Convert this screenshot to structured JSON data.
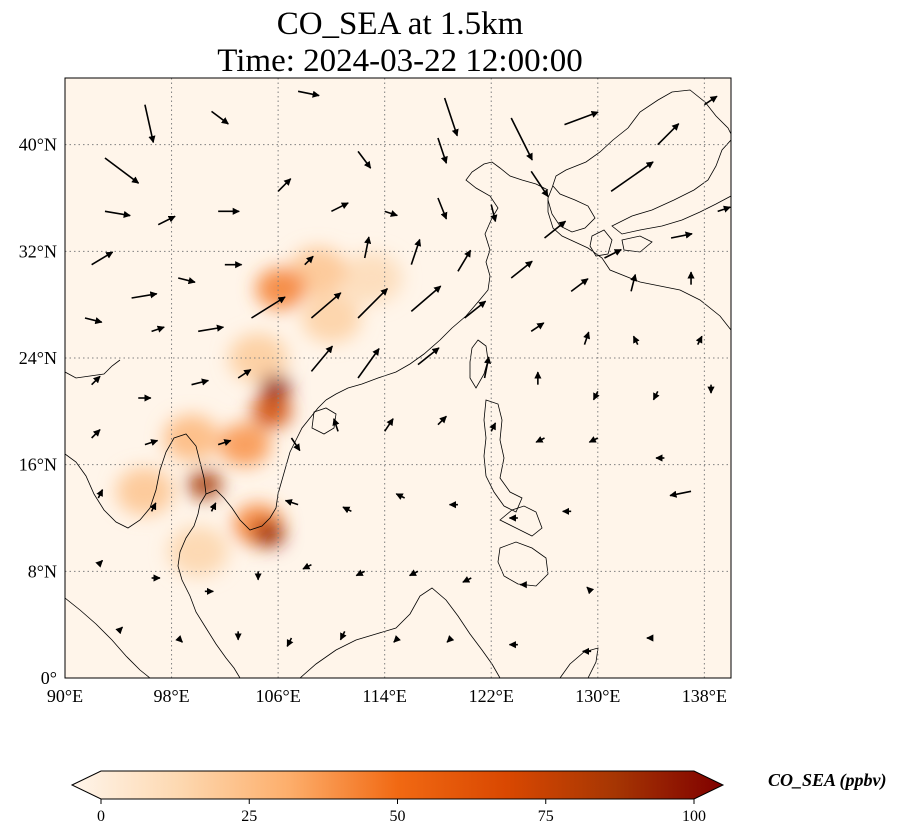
{
  "title": {
    "line1": "CO_SEA at 1.5km",
    "line2": "Time: 2024-03-22 12:00:00"
  },
  "map": {
    "lon_range": [
      90,
      140
    ],
    "lat_range": [
      0,
      45
    ],
    "lon_ticks": [
      90,
      98,
      106,
      114,
      122,
      130,
      138
    ],
    "lon_tick_labels": [
      "90°E",
      "98°E",
      "106°E",
      "114°E",
      "122°E",
      "130°E",
      "138°E"
    ],
    "lat_ticks": [
      0,
      8,
      16,
      24,
      32,
      40
    ],
    "lat_tick_labels": [
      "0°",
      "8°N",
      "16°N",
      "24°N",
      "32°N",
      "40°N"
    ],
    "gridlines": "dotted",
    "background_color": "#fff5ea",
    "coastline_color": "#000000"
  },
  "colorbar": {
    "label": "CO_SEA (ppbv)",
    "range": [
      0,
      100
    ],
    "ticks": [
      0,
      25,
      50,
      75,
      100
    ],
    "tick_labels": [
      "0",
      "25",
      "50",
      "75",
      "100"
    ],
    "extend": "both",
    "colormap": [
      "#fff5eb",
      "#fdd8b0",
      "#fdae6b",
      "#f16913",
      "#d94801",
      "#a63603",
      "#7f0000"
    ]
  },
  "chart_data": {
    "type": "heatmap",
    "variable": "CO_SEA (ppbv)",
    "hotspots": [
      {
        "lon": 105.8,
        "lat": 21.8,
        "value": 95
      },
      {
        "lon": 105.3,
        "lat": 10.8,
        "value": 92
      },
      {
        "lon": 100.5,
        "lat": 14.5,
        "value": 85
      },
      {
        "lon": 105.5,
        "lat": 20.0,
        "value": 70
      },
      {
        "lon": 106.2,
        "lat": 29.2,
        "value": 45
      },
      {
        "lon": 104.5,
        "lat": 11.5,
        "value": 45
      },
      {
        "lon": 103.5,
        "lat": 17.5,
        "value": 40
      },
      {
        "lon": 99.5,
        "lat": 18.0,
        "value": 30
      },
      {
        "lon": 109.0,
        "lat": 30.5,
        "value": 25
      },
      {
        "lon": 96.0,
        "lat": 14.0,
        "value": 25
      },
      {
        "lon": 110.0,
        "lat": 27.0,
        "value": 20
      },
      {
        "lon": 104.5,
        "lat": 24.0,
        "value": 22
      },
      {
        "lon": 113.0,
        "lat": 30.0,
        "value": 15
      },
      {
        "lon": 100.0,
        "lat": 9.5,
        "value": 18
      }
    ],
    "wind_vectors": [
      {
        "lon": 93.0,
        "lat": 39.0,
        "u": 8,
        "v": -6
      },
      {
        "lon": 96.0,
        "lat": 43.0,
        "u": 2,
        "v": -9
      },
      {
        "lon": 101.0,
        "lat": 42.5,
        "u": 4,
        "v": -3
      },
      {
        "lon": 107.5,
        "lat": 44.0,
        "u": 5,
        "v": -1
      },
      {
        "lon": 112.0,
        "lat": 39.5,
        "u": 3,
        "v": -4
      },
      {
        "lon": 118.0,
        "lat": 40.5,
        "u": 2,
        "v": -6
      },
      {
        "lon": 118.5,
        "lat": 43.5,
        "u": 3,
        "v": -9
      },
      {
        "lon": 123.5,
        "lat": 42.0,
        "u": 5,
        "v": -10
      },
      {
        "lon": 125.0,
        "lat": 38.0,
        "u": 4,
        "v": -6
      },
      {
        "lon": 127.5,
        "lat": 41.5,
        "u": 8,
        "v": 3
      },
      {
        "lon": 131.0,
        "lat": 36.5,
        "u": 10,
        "v": 7
      },
      {
        "lon": 134.5,
        "lat": 40.0,
        "u": 5,
        "v": 5
      },
      {
        "lon": 138.0,
        "lat": 43.0,
        "u": 3,
        "v": 2
      },
      {
        "lon": 93.0,
        "lat": 35.0,
        "u": 6,
        "v": -1
      },
      {
        "lon": 97.0,
        "lat": 34.0,
        "u": 4,
        "v": 2
      },
      {
        "lon": 101.5,
        "lat": 35.0,
        "u": 5,
        "v": 0
      },
      {
        "lon": 106.0,
        "lat": 36.5,
        "u": 3,
        "v": 3
      },
      {
        "lon": 110.0,
        "lat": 35.0,
        "u": 4,
        "v": 2
      },
      {
        "lon": 114.0,
        "lat": 35.0,
        "u": 3,
        "v": -1
      },
      {
        "lon": 118.0,
        "lat": 36.0,
        "u": 2,
        "v": -5
      },
      {
        "lon": 122.0,
        "lat": 35.5,
        "u": 1,
        "v": -4
      },
      {
        "lon": 126.0,
        "lat": 33.0,
        "u": 5,
        "v": 4
      },
      {
        "lon": 130.5,
        "lat": 31.5,
        "u": 4,
        "v": 2
      },
      {
        "lon": 135.5,
        "lat": 33.0,
        "u": 5,
        "v": 1
      },
      {
        "lon": 139.0,
        "lat": 35.0,
        "u": 3,
        "v": 1
      },
      {
        "lon": 92.0,
        "lat": 31.0,
        "u": 5,
        "v": 3
      },
      {
        "lon": 95.0,
        "lat": 28.5,
        "u": 6,
        "v": 1
      },
      {
        "lon": 98.5,
        "lat": 30.0,
        "u": 4,
        "v": -1
      },
      {
        "lon": 102.0,
        "lat": 31.0,
        "u": 4,
        "v": 0
      },
      {
        "lon": 108.0,
        "lat": 31.0,
        "u": 2,
        "v": 2
      },
      {
        "lon": 112.5,
        "lat": 31.5,
        "u": 1,
        "v": 5
      },
      {
        "lon": 116.0,
        "lat": 31.0,
        "u": 2,
        "v": 6
      },
      {
        "lon": 119.5,
        "lat": 30.5,
        "u": 3,
        "v": 5
      },
      {
        "lon": 123.5,
        "lat": 30.0,
        "u": 5,
        "v": 4
      },
      {
        "lon": 128.0,
        "lat": 29.0,
        "u": 4,
        "v": 3
      },
      {
        "lon": 132.5,
        "lat": 29.0,
        "u": 1,
        "v": 4
      },
      {
        "lon": 137.0,
        "lat": 29.5,
        "u": 0,
        "v": 3
      },
      {
        "lon": 91.5,
        "lat": 27.0,
        "u": 4,
        "v": -1
      },
      {
        "lon": 96.5,
        "lat": 26.0,
        "u": 3,
        "v": 1
      },
      {
        "lon": 100.0,
        "lat": 26.0,
        "u": 6,
        "v": 1
      },
      {
        "lon": 104.0,
        "lat": 27.0,
        "u": 8,
        "v": 5
      },
      {
        "lon": 108.5,
        "lat": 27.0,
        "u": 7,
        "v": 6
      },
      {
        "lon": 112.0,
        "lat": 27.0,
        "u": 7,
        "v": 7
      },
      {
        "lon": 116.0,
        "lat": 27.5,
        "u": 7,
        "v": 6
      },
      {
        "lon": 120.0,
        "lat": 27.0,
        "u": 5,
        "v": 4
      },
      {
        "lon": 125.0,
        "lat": 26.0,
        "u": 3,
        "v": 2
      },
      {
        "lon": 129.0,
        "lat": 25.0,
        "u": 1,
        "v": 3
      },
      {
        "lon": 133.0,
        "lat": 25.0,
        "u": -1,
        "v": 2
      },
      {
        "lon": 137.5,
        "lat": 25.0,
        "u": 1,
        "v": 2
      },
      {
        "lon": 92.0,
        "lat": 22.0,
        "u": 2,
        "v": 2
      },
      {
        "lon": 95.5,
        "lat": 21.0,
        "u": 3,
        "v": 0
      },
      {
        "lon": 99.5,
        "lat": 22.0,
        "u": 4,
        "v": 1
      },
      {
        "lon": 103.0,
        "lat": 22.5,
        "u": 3,
        "v": 2
      },
      {
        "lon": 108.5,
        "lat": 23.0,
        "u": 5,
        "v": 6
      },
      {
        "lon": 112.0,
        "lat": 22.5,
        "u": 5,
        "v": 7
      },
      {
        "lon": 116.5,
        "lat": 23.5,
        "u": 5,
        "v": 4
      },
      {
        "lon": 121.5,
        "lat": 22.5,
        "u": 1,
        "v": 5
      },
      {
        "lon": 125.5,
        "lat": 22.0,
        "u": 0,
        "v": 3
      },
      {
        "lon": 130.0,
        "lat": 21.5,
        "u": -1,
        "v": -2
      },
      {
        "lon": 134.5,
        "lat": 21.5,
        "u": -1,
        "v": -2
      },
      {
        "lon": 138.5,
        "lat": 22.0,
        "u": 0,
        "v": -2
      },
      {
        "lon": 92.0,
        "lat": 18.0,
        "u": 2,
        "v": 2
      },
      {
        "lon": 96.0,
        "lat": 17.5,
        "u": 3,
        "v": 1
      },
      {
        "lon": 101.5,
        "lat": 17.5,
        "u": 3,
        "v": 1
      },
      {
        "lon": 107.0,
        "lat": 18.0,
        "u": 2,
        "v": -3
      },
      {
        "lon": 110.5,
        "lat": 18.5,
        "u": -1,
        "v": 3
      },
      {
        "lon": 114.0,
        "lat": 18.5,
        "u": 2,
        "v": 3
      },
      {
        "lon": 118.0,
        "lat": 19.0,
        "u": 2,
        "v": 2
      },
      {
        "lon": 122.0,
        "lat": 18.5,
        "u": 1,
        "v": 2
      },
      {
        "lon": 126.0,
        "lat": 18.0,
        "u": -2,
        "v": -1
      },
      {
        "lon": 130.0,
        "lat": 18.0,
        "u": -2,
        "v": -1
      },
      {
        "lon": 135.0,
        "lat": 16.5,
        "u": -2,
        "v": 0
      },
      {
        "lon": 137.0,
        "lat": 14.0,
        "u": -5,
        "v": -1
      },
      {
        "lon": 92.5,
        "lat": 13.5,
        "u": 1,
        "v": 2
      },
      {
        "lon": 96.5,
        "lat": 12.5,
        "u": 1,
        "v": 2
      },
      {
        "lon": 101.0,
        "lat": 12.5,
        "u": 1,
        "v": 2
      },
      {
        "lon": 107.5,
        "lat": 13.0,
        "u": -3,
        "v": 1
      },
      {
        "lon": 111.5,
        "lat": 12.5,
        "u": -2,
        "v": 1
      },
      {
        "lon": 115.5,
        "lat": 13.5,
        "u": -2,
        "v": 1
      },
      {
        "lon": 119.5,
        "lat": 13.0,
        "u": -2,
        "v": 0
      },
      {
        "lon": 124.0,
        "lat": 12.0,
        "u": -2,
        "v": 0
      },
      {
        "lon": 128.0,
        "lat": 12.5,
        "u": -2,
        "v": 0
      },
      {
        "lon": 92.5,
        "lat": 8.5,
        "u": 1,
        "v": 1
      },
      {
        "lon": 96.5,
        "lat": 7.5,
        "u": 2,
        "v": 0
      },
      {
        "lon": 100.5,
        "lat": 6.5,
        "u": 2,
        "v": 0
      },
      {
        "lon": 104.5,
        "lat": 8.0,
        "u": 0,
        "v": -2
      },
      {
        "lon": 108.5,
        "lat": 8.5,
        "u": -2,
        "v": -1
      },
      {
        "lon": 112.5,
        "lat": 8.0,
        "u": -2,
        "v": -1
      },
      {
        "lon": 116.5,
        "lat": 8.0,
        "u": -2,
        "v": -1
      },
      {
        "lon": 120.5,
        "lat": 7.5,
        "u": -2,
        "v": -1
      },
      {
        "lon": 124.5,
        "lat": 7.0,
        "u": -1,
        "v": 0
      },
      {
        "lon": 129.5,
        "lat": 6.5,
        "u": -1,
        "v": 1
      },
      {
        "lon": 94.0,
        "lat": 3.5,
        "u": 1,
        "v": 1
      },
      {
        "lon": 98.5,
        "lat": 3.0,
        "u": 1,
        "v": -1
      },
      {
        "lon": 103.0,
        "lat": 3.5,
        "u": 0,
        "v": -2
      },
      {
        "lon": 107.0,
        "lat": 3.0,
        "u": -1,
        "v": -2
      },
      {
        "lon": 111.0,
        "lat": 3.5,
        "u": -1,
        "v": -2
      },
      {
        "lon": 115.0,
        "lat": 3.0,
        "u": -1,
        "v": -1
      },
      {
        "lon": 119.0,
        "lat": 3.0,
        "u": -1,
        "v": -1
      },
      {
        "lon": 124.0,
        "lat": 2.5,
        "u": -2,
        "v": 0
      },
      {
        "lon": 129.5,
        "lat": 2.0,
        "u": -2,
        "v": 0
      },
      {
        "lon": 134.0,
        "lat": 3.0,
        "u": -1,
        "v": 0
      }
    ]
  }
}
